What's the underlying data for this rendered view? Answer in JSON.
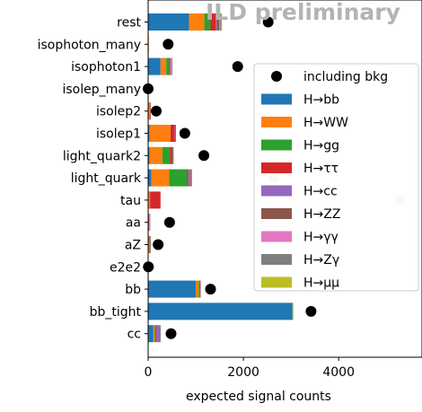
{
  "chart_data": {
    "type": "bar",
    "orientation": "horizontal",
    "stacked": true,
    "categories": [
      "rest",
      "isophoton_many",
      "isophoton1",
      "isolep_many",
      "isolep2",
      "isolep1",
      "light_quark2",
      "light_quark",
      "tau",
      "aa",
      "aZ",
      "e2e2",
      "bb",
      "bb_tight",
      "cc"
    ],
    "series": [
      {
        "name": "H→bb",
        "color": "#1f77b4",
        "values": [
          860,
          0,
          260,
          0,
          5,
          30,
          30,
          70,
          10,
          0,
          5,
          0,
          1000,
          3030,
          110
        ]
      },
      {
        "name": "H→WW",
        "color": "#ff7f0e",
        "values": [
          320,
          15,
          120,
          10,
          30,
          440,
          270,
          370,
          30,
          10,
          25,
          5,
          60,
          3,
          30
        ]
      },
      {
        "name": "H→gg",
        "color": "#2ca02c",
        "values": [
          130,
          0,
          60,
          0,
          0,
          0,
          160,
          380,
          0,
          0,
          0,
          0,
          15,
          2,
          20
        ]
      },
      {
        "name": "H→ττ",
        "color": "#d62728",
        "values": [
          110,
          0,
          20,
          0,
          10,
          90,
          40,
          20,
          220,
          5,
          10,
          0,
          10,
          0,
          10
        ]
      },
      {
        "name": "H→cc",
        "color": "#9467bd",
        "values": [
          20,
          0,
          5,
          0,
          0,
          5,
          5,
          40,
          0,
          0,
          0,
          0,
          5,
          0,
          80
        ]
      },
      {
        "name": "H→ZZ",
        "color": "#8c564b",
        "values": [
          50,
          0,
          10,
          0,
          5,
          10,
          15,
          20,
          0,
          0,
          5,
          0,
          5,
          0,
          5
        ]
      },
      {
        "name": "H→γγ",
        "color": "#e377c2",
        "values": [
          20,
          0,
          20,
          0,
          0,
          0,
          0,
          0,
          0,
          20,
          0,
          0,
          0,
          0,
          0
        ]
      },
      {
        "name": "H→Zγ",
        "color": "#7f7f7f",
        "values": [
          30,
          0,
          15,
          0,
          0,
          5,
          15,
          20,
          0,
          5,
          10,
          0,
          5,
          0,
          5
        ]
      },
      {
        "name": "H→μμ",
        "color": "#bcbd22",
        "values": [
          10,
          0,
          0,
          0,
          0,
          0,
          0,
          0,
          0,
          0,
          0,
          0,
          0,
          0,
          0
        ]
      }
    ],
    "including_bkg": {
      "name": "including bkg",
      "color": "#000000",
      "values": [
        2520,
        420,
        1880,
        0,
        170,
        770,
        1170,
        2640,
        5300,
        450,
        210,
        5,
        1310,
        3420,
        480
      ]
    },
    "xlabel": "expected signal counts",
    "xlim": [
      0,
      5750
    ],
    "xticks": [
      0,
      2000,
      4000
    ],
    "grid": false,
    "legend_placement": "right",
    "watermark": "ILD preliminary"
  }
}
